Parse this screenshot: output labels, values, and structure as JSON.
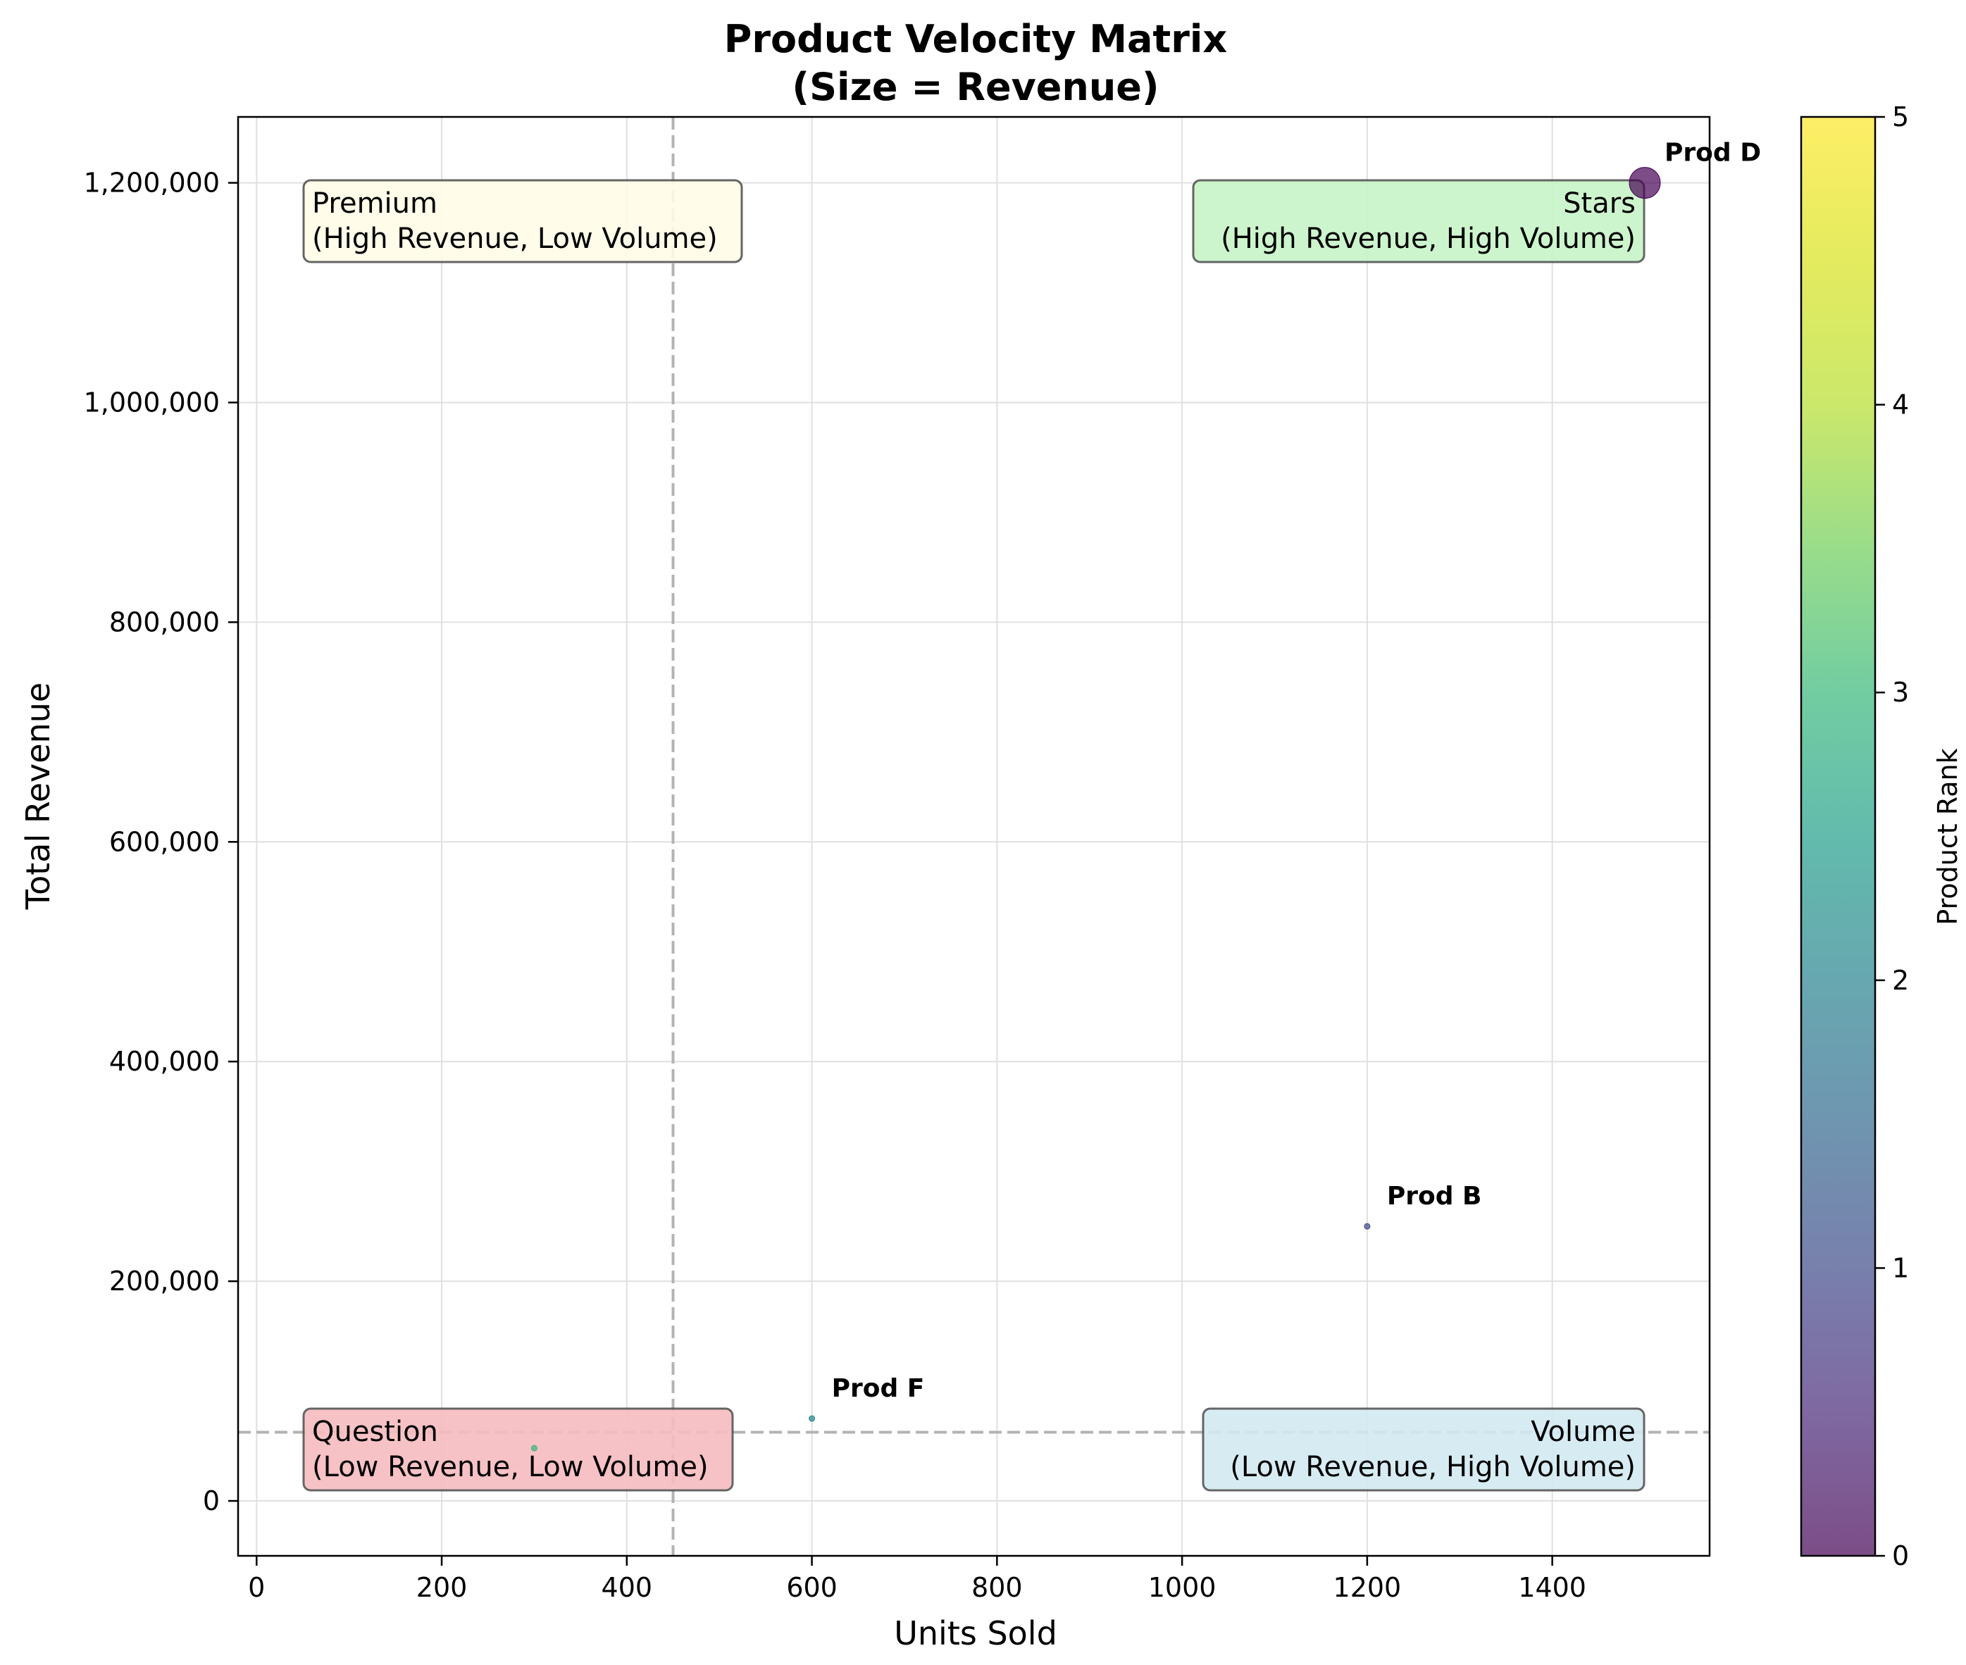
{
  "chart_data": {
    "type": "scatter",
    "title": "Product Velocity Matrix",
    "subtitle": "(Size = Revenue)",
    "xlabel": "Units Sold",
    "ylabel": "Total Revenue",
    "xlim": [
      -20,
      1570
    ],
    "ylim": [
      -50000,
      1260000
    ],
    "xticks": [
      0,
      200,
      400,
      600,
      800,
      1000,
      1200,
      1400
    ],
    "xtick_labels": [
      "0",
      "200",
      "400",
      "600",
      "800",
      "1000",
      "1200",
      "1400"
    ],
    "yticks": [
      0,
      200000,
      400000,
      600000,
      800000,
      1000000,
      1200000
    ],
    "ytick_labels": [
      "0",
      "200,000",
      "400,000",
      "600,000",
      "800,000",
      "1,000,000",
      "1,200,000"
    ],
    "grid": true,
    "reference_lines": {
      "x": 450,
      "y": 62500,
      "style": "dashed",
      "color": "#b3b3b3"
    },
    "colormap": "viridis",
    "colorbar": {
      "label": "Product Rank",
      "range": [
        0,
        5
      ],
      "ticks": [
        0,
        1,
        2,
        3,
        4,
        5
      ],
      "tick_labels": [
        "0",
        "1",
        "2",
        "3",
        "4",
        "5"
      ]
    },
    "points": [
      {
        "label": "Prod D",
        "x": 1500,
        "y": 1200000,
        "rank": 0,
        "size_value": 1200000,
        "labeled": true
      },
      {
        "label": "Prod B",
        "x": 1200,
        "y": 250000,
        "rank": 1,
        "size_value": 250000,
        "labeled": true
      },
      {
        "label": "Prod F",
        "x": 600,
        "y": 75000,
        "rank": 2,
        "size_value": 75000,
        "labeled": true
      },
      {
        "label": "",
        "x": 300,
        "y": 48000,
        "rank": 3,
        "size_value": 48000,
        "labeled": false
      }
    ],
    "quadrants": [
      {
        "key": "premium",
        "line1": "Premium",
        "line2": "(High Revenue, Low Volume)",
        "color": "#fffde7",
        "align": "left"
      },
      {
        "key": "stars",
        "line1": "Stars",
        "line2": "(High Revenue, High Volume)",
        "color": "#c8f5c8",
        "align": "right"
      },
      {
        "key": "question",
        "line1": "Question",
        "line2": "(Low Revenue, Low Volume)",
        "color": "#f7bcbf",
        "align": "left"
      },
      {
        "key": "volume",
        "line1": "Volume",
        "line2": "(Low Revenue, High Volume)",
        "color": "#d3eaf1",
        "align": "right"
      }
    ]
  }
}
